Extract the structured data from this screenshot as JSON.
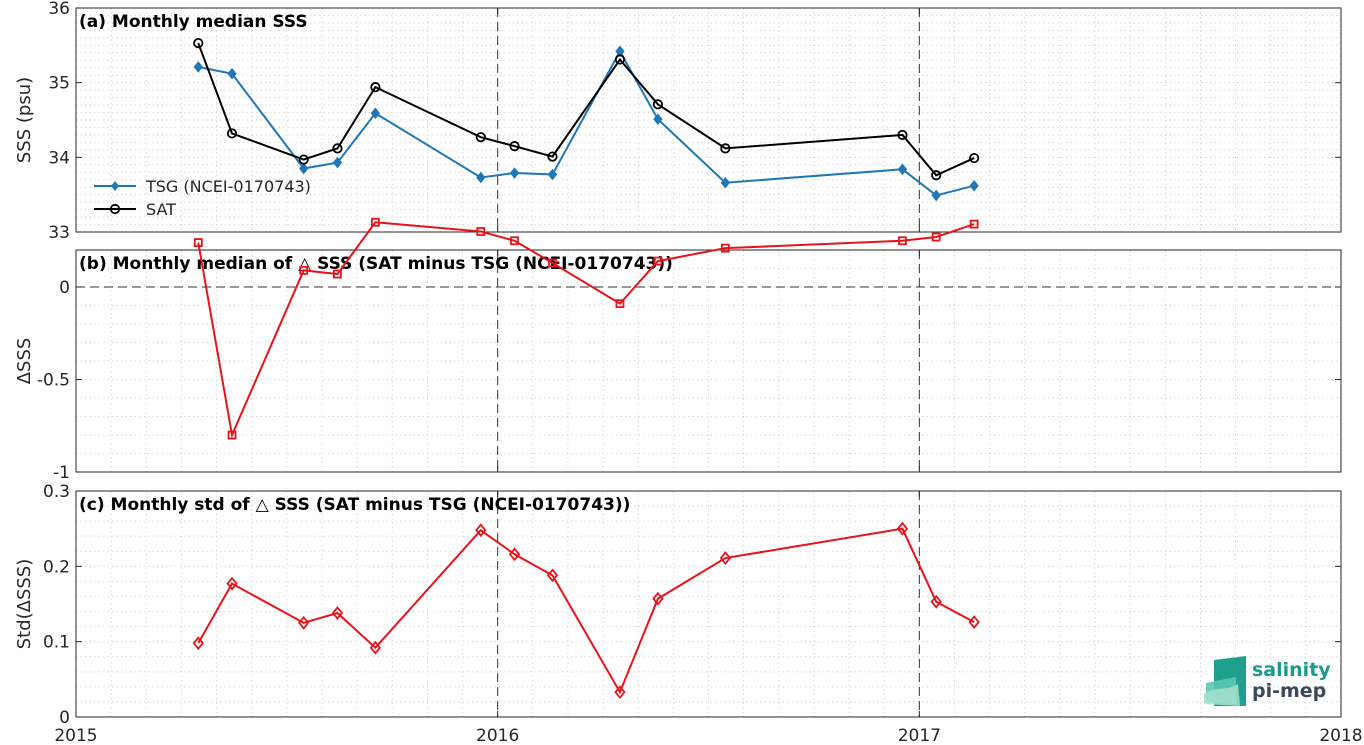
{
  "chart_data": [
    {
      "type": "line",
      "title": "(a) Monthly median SSS",
      "xlabel": "",
      "ylabel": "SSS (psu)",
      "ylim": [
        33,
        36
      ],
      "xlim": [
        2015,
        2018
      ],
      "yticks": [
        "33",
        "34",
        "35",
        "36"
      ],
      "grid": true,
      "legend_position": "bottom-left",
      "x": [
        2015.29,
        2015.37,
        2015.54,
        2015.62,
        2015.71,
        2015.96,
        2016.04,
        2016.13,
        2016.29,
        2016.38,
        2016.54,
        2016.96,
        2017.04,
        2017.13
      ],
      "series": [
        {
          "name": "TSG (NCEI-0170743)",
          "color": "#1f77b4",
          "marker": "diamond-filled",
          "values": [
            35.21,
            35.12,
            33.85,
            33.93,
            34.59,
            33.73,
            33.79,
            33.77,
            35.42,
            34.51,
            33.66,
            33.84,
            33.49,
            33.62
          ]
        },
        {
          "name": "SAT",
          "color": "#000000",
          "marker": "circle-open",
          "values": [
            35.53,
            34.32,
            33.97,
            34.12,
            34.94,
            34.27,
            34.15,
            34.01,
            35.31,
            34.71,
            34.12,
            34.3,
            33.76,
            33.99
          ]
        }
      ]
    },
    {
      "type": "line",
      "title": "(b) Monthly median of △ SSS (SAT minus TSG (NCEI-0170743))",
      "xlabel": "",
      "ylabel": "ΔSSS",
      "ylim": [
        -1,
        0.2
      ],
      "xlim": [
        2015,
        2018
      ],
      "yticks": [
        "-1",
        "-0.5",
        "0"
      ],
      "grid": true,
      "zero_line": true,
      "x": [
        2015.29,
        2015.37,
        2015.54,
        2015.62,
        2015.71,
        2015.96,
        2016.04,
        2016.13,
        2016.29,
        2016.38,
        2016.54,
        2016.96,
        2017.04,
        2017.13
      ],
      "series": [
        {
          "color": "#e8131a",
          "marker": "square-open",
          "values": [
            0.24,
            -0.8,
            0.09,
            0.07,
            0.35,
            0.3,
            0.25,
            0.13,
            -0.09,
            0.14,
            0.21,
            0.25,
            0.27,
            0.34
          ]
        }
      ]
    },
    {
      "type": "line",
      "title": "(c) Monthly std of △ SSS (SAT minus TSG (NCEI-0170743))",
      "xlabel": "",
      "ylabel": "Std(ΔSSS)",
      "ylim": [
        0,
        0.3
      ],
      "xlim": [
        2015,
        2018
      ],
      "yticks": [
        "0",
        "0.1",
        "0.2",
        "0.3"
      ],
      "xticks": [
        "2015",
        "2016",
        "2017",
        "2018"
      ],
      "grid": true,
      "x": [
        2015.29,
        2015.37,
        2015.54,
        2015.62,
        2015.71,
        2015.96,
        2016.04,
        2016.13,
        2016.29,
        2016.38,
        2016.54,
        2016.96,
        2017.04,
        2017.13
      ],
      "series": [
        {
          "color": "#e8131a",
          "marker": "diamond-open",
          "values": [
            0.098,
            0.177,
            0.125,
            0.138,
            0.092,
            0.248,
            0.216,
            0.188,
            0.033,
            0.157,
            0.211,
            0.25,
            0.153,
            0.126
          ]
        }
      ]
    }
  ],
  "logo": {
    "line1": "salinity",
    "line2": "pi-mep",
    "color_primary": "#1a9a8a",
    "color_secondary": "#3a4a5a"
  }
}
